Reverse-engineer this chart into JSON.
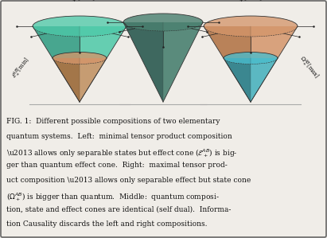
{
  "background_color": "#f0ede8",
  "figure_width": 4.11,
  "figure_height": 2.99,
  "left_cone": {
    "outer_color_main": "#4dc9a8",
    "outer_color_dark": "#2a9a80",
    "inner_color_main": "#d4956a",
    "inner_color_dark": "#b07040",
    "overlap_color": "#6aaa88",
    "label_top": "$\\Omega_+^{AB}$[min]",
    "label_side": "$\\mathcal{E}_+^{AB}$[min]"
  },
  "middle_cone": {
    "color_main": "#4a8070",
    "color_dark": "#2a5a50",
    "label_top": "$\\Omega_+^{AB}[Q] = \\mathcal{E}_+^{AB}$ [Q]"
  },
  "right_cone": {
    "outer_color_main": "#d4956a",
    "outer_color_dark": "#b07040",
    "inner_color_main": "#4abccc",
    "inner_color_dark": "#2a8898",
    "label_top": "$\\mathcal{E}_+^{AB}$[max]",
    "label_side": "$\\Omega_+^{AB}$[max]"
  },
  "caption_lines": [
    "FIG. 1:  Different possible compositions of two elementary",
    "quantum systems.  Left:  minimal tensor product composition",
    "\\u2013 allows only separable states but effect cone ($\\mathcal{E}_+^{AB}$) is big-",
    "ger than quantum effect cone.  Right:  maximal tensor prod-",
    "uct composition \\u2013 allows only separable effect but state cone",
    "($\\Omega_+^{AB}$) is bigger than quantum.  Middle:  quantum composi-",
    "tion, state and effect cones are identical (self dual).  Informa-",
    "tion Causality discards the left and right compositions."
  ]
}
